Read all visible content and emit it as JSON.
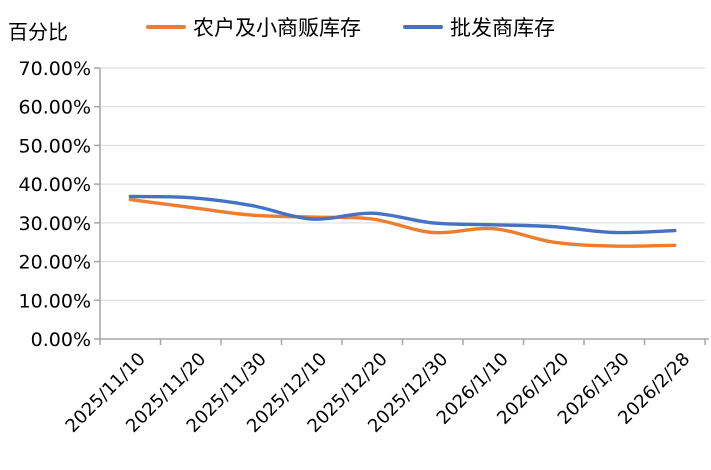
{
  "chart": {
    "axis_title": "百分比",
    "legend": {
      "items": [
        {
          "label": "农户及小商贩库存",
          "color": "#ED7D31"
        },
        {
          "label": "批发商库存",
          "color": "#4472C4"
        }
      ]
    }
  },
  "chart_data": {
    "type": "line",
    "smooth": true,
    "title": "",
    "ylabel": "百分比",
    "unit": "percent",
    "ylim": [
      0,
      70
    ],
    "ytick_step": 10,
    "ytick_labels": [
      "0.00%",
      "10.00%",
      "20.00%",
      "30.00%",
      "40.00%",
      "50.00%",
      "60.00%",
      "70.00%"
    ],
    "grid": true,
    "legend_position": "top",
    "x_label_rotation_deg": 45,
    "categories": [
      "2025/11/10",
      "2025/11/20",
      "2025/11/30",
      "2025/12/10",
      "2025/12/20",
      "2025/12/30",
      "2026/1/10",
      "2026/1/20",
      "2026/1/30",
      "2026/2/28"
    ],
    "series": [
      {
        "name": "农户及小商贩库存",
        "color": "#ED7D31",
        "values": [
          36.0,
          34.0,
          32.0,
          31.5,
          31.0,
          27.5,
          28.5,
          25.0,
          24.0,
          24.2
        ]
      },
      {
        "name": "批发商库存",
        "color": "#4472C4",
        "values": [
          36.8,
          36.5,
          34.5,
          31.0,
          32.5,
          30.0,
          29.5,
          29.0,
          27.5,
          28.0
        ]
      }
    ],
    "colors": {
      "gridline": "#D9D9D9",
      "axis": "#A6A6A6",
      "text": "#000000"
    }
  }
}
